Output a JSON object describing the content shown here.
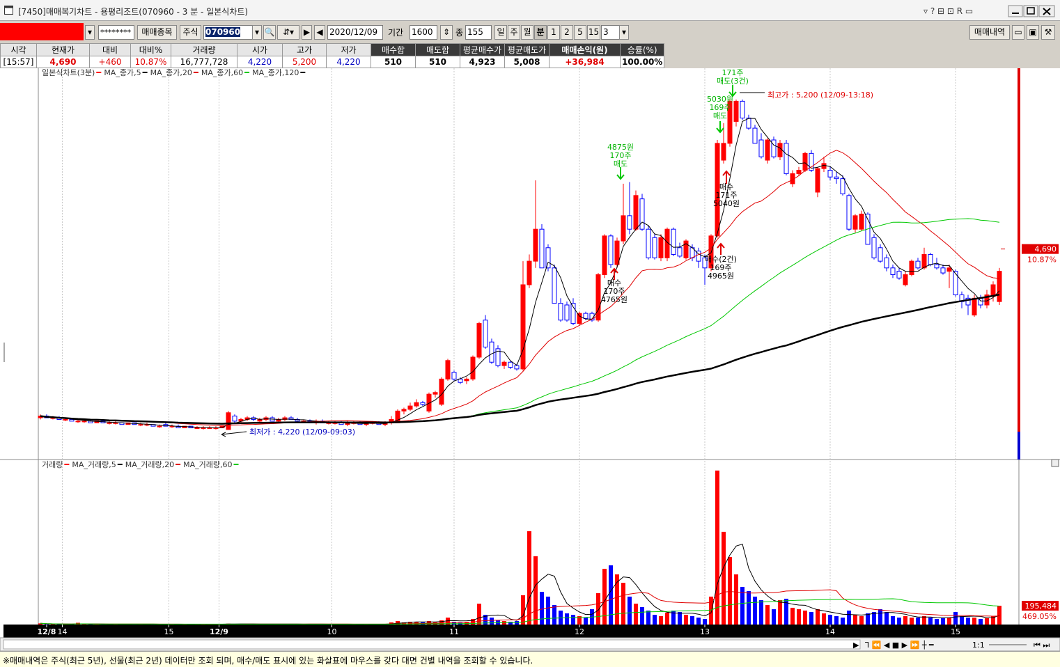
{
  "window": {
    "title": "[7450]매매복기차트 - 용평리조트(070960 - 3 분 - 일본식차트)"
  },
  "toolbar": {
    "password": "********",
    "trade_symbol": "매매종목",
    "market": "주식",
    "code": "070960",
    "date": "2020/12/09",
    "period_label": "기간",
    "period": "1600",
    "count_label": "종",
    "count": "155",
    "units": [
      "일",
      "주",
      "월",
      "분"
    ],
    "minutes": [
      "1",
      "2",
      "5",
      "15"
    ],
    "minute_select": "3",
    "history": "매매내역"
  },
  "summary": {
    "headers": [
      "시각",
      "현재가",
      "대비",
      "대비%",
      "거래량",
      "시가",
      "고가",
      "저가",
      "매수합",
      "매도합",
      "평균매수가",
      "평균매도가",
      "매매손익(원)",
      "승률(%)"
    ],
    "values": [
      "[15:57]",
      "4,690",
      "+460",
      "10.87%",
      "16,777,728",
      "4,220",
      "5,200",
      "4,220",
      "510",
      "510",
      "4,923",
      "5,008",
      "+36,984",
      "100.00%"
    ]
  },
  "chart_data": [
    {
      "type": "candlestick",
      "title": "일본식차트(3분)",
      "up_color": "#ff0000",
      "down_color": "#0000ff",
      "xlim": [
        -0.33,
        156
      ],
      "ylim": [
        4131,
        5293
      ],
      "xticks": [
        {
          "value": 1,
          "label": "12/8"
        },
        {
          "value": 3.5,
          "label": "14"
        },
        {
          "value": 20.5,
          "label": "15"
        },
        {
          "value": 28.5,
          "label": "12/9"
        },
        {
          "value": 46.5,
          "label": "10"
        },
        {
          "value": 66,
          "label": "11"
        },
        {
          "value": 86,
          "label": "12"
        },
        {
          "value": 106,
          "label": "13"
        },
        {
          "value": 126,
          "label": "14"
        },
        {
          "value": 146,
          "label": "15"
        }
      ],
      "moving_averages": [
        {
          "name": "MA_종가,5",
          "period": 5,
          "color": "#000000",
          "width": 1
        },
        {
          "name": "MA_종가,20",
          "period": 20,
          "color": "#e00000",
          "width": 1
        },
        {
          "name": "MA_종가,60",
          "period": 60,
          "color": "#00c800",
          "width": 1
        },
        {
          "name": "MA_종가,120",
          "period": 120,
          "color": "#000000",
          "width": 2.5
        }
      ],
      "ohlc": [
        [
          4255,
          4265,
          4250,
          4260
        ],
        [
          4260,
          4265,
          4255,
          4255
        ],
        [
          4255,
          4260,
          4250,
          4255
        ],
        [
          4255,
          4260,
          4250,
          4250
        ],
        [
          4250,
          4255,
          4245,
          4250
        ],
        [
          4250,
          4255,
          4245,
          4245
        ],
        [
          4245,
          4250,
          4240,
          4245
        ],
        [
          4245,
          4250,
          4240,
          4245
        ],
        [
          4245,
          4250,
          4240,
          4240
        ],
        [
          4240,
          4245,
          4240,
          4245
        ],
        [
          4245,
          4245,
          4240,
          4240
        ],
        [
          4240,
          4245,
          4235,
          4240
        ],
        [
          4240,
          4245,
          4235,
          4240
        ],
        [
          4240,
          4240,
          4235,
          4235
        ],
        [
          4235,
          4240,
          4235,
          4240
        ],
        [
          4240,
          4240,
          4235,
          4235
        ],
        [
          4235,
          4240,
          4230,
          4235
        ],
        [
          4235,
          4240,
          4230,
          4235
        ],
        [
          4235,
          4235,
          4230,
          4230
        ],
        [
          4230,
          4235,
          4225,
          4230
        ],
        [
          4235,
          4240,
          4230,
          4230
        ],
        [
          4230,
          4235,
          4225,
          4230
        ],
        [
          4230,
          4235,
          4225,
          4225
        ],
        [
          4225,
          4230,
          4225,
          4230
        ],
        [
          4230,
          4230,
          4225,
          4225
        ],
        [
          4225,
          4230,
          4225,
          4225
        ],
        [
          4225,
          4230,
          4220,
          4225
        ],
        [
          4225,
          4230,
          4225,
          4225
        ],
        [
          4225,
          4230,
          4220,
          4225
        ],
        [
          4225,
          4230,
          4225,
          4230
        ],
        [
          4220,
          4275,
          4220,
          4270
        ],
        [
          4260,
          4265,
          4240,
          4245
        ],
        [
          4245,
          4255,
          4240,
          4250
        ],
        [
          4250,
          4260,
          4245,
          4255
        ],
        [
          4255,
          4260,
          4245,
          4250
        ],
        [
          4245,
          4255,
          4240,
          4250
        ],
        [
          4250,
          4260,
          4245,
          4255
        ],
        [
          4255,
          4260,
          4245,
          4245
        ],
        [
          4245,
          4255,
          4240,
          4250
        ],
        [
          4250,
          4260,
          4245,
          4255
        ],
        [
          4255,
          4260,
          4250,
          4250
        ],
        [
          4250,
          4255,
          4240,
          4245
        ],
        [
          4245,
          4250,
          4240,
          4245
        ],
        [
          4245,
          4250,
          4240,
          4240
        ],
        [
          4240,
          4250,
          4235,
          4245
        ],
        [
          4245,
          4250,
          4240,
          4240
        ],
        [
          4240,
          4245,
          4235,
          4240
        ],
        [
          4240,
          4245,
          4235,
          4240
        ],
        [
          4240,
          4245,
          4235,
          4235
        ],
        [
          4235,
          4245,
          4230,
          4240
        ],
        [
          4240,
          4245,
          4235,
          4240
        ],
        [
          4240,
          4245,
          4235,
          4235
        ],
        [
          4235,
          4240,
          4230,
          4240
        ],
        [
          4240,
          4245,
          4235,
          4240
        ],
        [
          4240,
          4245,
          4235,
          4235
        ],
        [
          4235,
          4245,
          4230,
          4240
        ],
        [
          4240,
          4260,
          4235,
          4250
        ],
        [
          4240,
          4280,
          4240,
          4275
        ],
        [
          4275,
          4285,
          4265,
          4280
        ],
        [
          4280,
          4300,
          4275,
          4290
        ],
        [
          4290,
          4310,
          4285,
          4300
        ],
        [
          4300,
          4305,
          4290,
          4295
        ],
        [
          4275,
          4330,
          4270,
          4325
        ],
        [
          4325,
          4335,
          4315,
          4330
        ],
        [
          4295,
          4375,
          4290,
          4370
        ],
        [
          4370,
          4430,
          4365,
          4425
        ],
        [
          4390,
          4395,
          4365,
          4370
        ],
        [
          4370,
          4375,
          4355,
          4360
        ],
        [
          4365,
          4375,
          4355,
          4370
        ],
        [
          4370,
          4440,
          4365,
          4435
        ],
        [
          4435,
          4540,
          4430,
          4535
        ],
        [
          4545,
          4560,
          4460,
          4465
        ],
        [
          4480,
          4490,
          4415,
          4420
        ],
        [
          4460,
          4470,
          4405,
          4410
        ],
        [
          4410,
          4425,
          4400,
          4420
        ],
        [
          4420,
          4425,
          4400,
          4405
        ],
        [
          4410,
          4415,
          4395,
          4400
        ],
        [
          4400,
          4720,
          4395,
          4650
        ],
        [
          4650,
          4740,
          4640,
          4720
        ],
        [
          4720,
          4960,
          4700,
          4815
        ],
        [
          4815,
          4830,
          4700,
          4700
        ],
        [
          4760,
          4770,
          4690,
          4700
        ],
        [
          4700,
          4710,
          4595,
          4595
        ],
        [
          4595,
          4610,
          4540,
          4545
        ],
        [
          4590,
          4600,
          4540,
          4545
        ],
        [
          4595,
          4610,
          4530,
          4535
        ],
        [
          4535,
          4570,
          4530,
          4565
        ],
        [
          4565,
          4570,
          4545,
          4550
        ],
        [
          4565,
          4570,
          4540,
          4545
        ],
        [
          4545,
          4685,
          4540,
          4680
        ],
        [
          4680,
          4800,
          4670,
          4795
        ],
        [
          4795,
          4800,
          4700,
          4710
        ],
        [
          4710,
          4790,
          4700,
          4780
        ],
        [
          4780,
          4950,
          4770,
          4855
        ],
        [
          4855,
          4955,
          4800,
          4815
        ],
        [
          4815,
          4930,
          4810,
          4915
        ],
        [
          4905,
          4920,
          4810,
          4815
        ],
        [
          4815,
          4825,
          4725,
          4730
        ],
        [
          4790,
          4800,
          4725,
          4730
        ],
        [
          4730,
          4800,
          4720,
          4790
        ],
        [
          4730,
          4820,
          4720,
          4815
        ],
        [
          4815,
          4820,
          4735,
          4740
        ],
        [
          4760,
          4775,
          4730,
          4735
        ],
        [
          4730,
          4785,
          4725,
          4780
        ],
        [
          4760,
          4770,
          4720,
          4730
        ],
        [
          4750,
          4760,
          4700,
          4720
        ],
        [
          4730,
          4740,
          4650,
          4700
        ],
        [
          4700,
          4800,
          4690,
          4795
        ],
        [
          4795,
          5080,
          4790,
          5070
        ],
        [
          5020,
          5130,
          5010,
          5070
        ],
        [
          5070,
          5200,
          5060,
          5195
        ],
        [
          5135,
          5200,
          5120,
          5195
        ],
        [
          5195,
          5200,
          5140,
          5145
        ],
        [
          5145,
          5155,
          5110,
          5115
        ],
        [
          5115,
          5125,
          5070,
          5070
        ],
        [
          5080,
          5100,
          5025,
          5030
        ],
        [
          5020,
          5085,
          5010,
          5080
        ],
        [
          5080,
          5090,
          5025,
          5030
        ],
        [
          5030,
          5080,
          5020,
          5070
        ],
        [
          5070,
          5080,
          4975,
          4980
        ],
        [
          4950,
          4990,
          4940,
          4980
        ],
        [
          4980,
          5000,
          4975,
          4990
        ],
        [
          4990,
          5045,
          4985,
          5040
        ],
        [
          5040,
          5050,
          4985,
          4990
        ],
        [
          4925,
          5000,
          4910,
          4995
        ],
        [
          4995,
          5030,
          4985,
          5010
        ],
        [
          4990,
          5000,
          4960,
          4970
        ],
        [
          4970,
          4985,
          4950,
          4965
        ],
        [
          4965,
          4975,
          4915,
          4920
        ],
        [
          4915,
          4920,
          4810,
          4815
        ],
        [
          4815,
          4860,
          4805,
          4855
        ],
        [
          4815,
          4870,
          4810,
          4860
        ],
        [
          4860,
          4865,
          4770,
          4770
        ],
        [
          4790,
          4800,
          4725,
          4730
        ],
        [
          4760,
          4770,
          4715,
          4720
        ],
        [
          4730,
          4740,
          4690,
          4700
        ],
        [
          4700,
          4710,
          4670,
          4680
        ],
        [
          4690,
          4700,
          4665,
          4670
        ],
        [
          4650,
          4690,
          4645,
          4680
        ],
        [
          4680,
          4725,
          4675,
          4720
        ],
        [
          4720,
          4730,
          4695,
          4700
        ],
        [
          4700,
          4760,
          4695,
          4740
        ],
        [
          4740,
          4745,
          4705,
          4710
        ],
        [
          4710,
          4730,
          4695,
          4700
        ],
        [
          4700,
          4710,
          4680,
          4685
        ],
        [
          4690,
          4710,
          4640,
          4700
        ],
        [
          4690,
          4695,
          4615,
          4620
        ],
        [
          4620,
          4630,
          4580,
          4600
        ],
        [
          4610,
          4620,
          4560,
          4590
        ],
        [
          4560,
          4620,
          4555,
          4610
        ],
        [
          4610,
          4620,
          4580,
          4590
        ],
        [
          4590,
          4635,
          4580,
          4620
        ],
        [
          4615,
          4660,
          4600,
          4650
        ],
        [
          4600,
          4700,
          4590,
          4690
        ]
      ],
      "last_label": {
        "value": 4690,
        "label": "4,690",
        "change": "10.87%"
      },
      "annotations": [
        {
          "lines": [
            "171주",
            "매도(3건)"
          ],
          "color": "#00b400"
        },
        {
          "lines": [
            "5030원",
            "169주",
            "매도"
          ],
          "color": "#00b400"
        },
        {
          "lines": [
            "4875원",
            "170주",
            "매도"
          ],
          "color": "#00b400"
        },
        {
          "lines": [
            "매수",
            "170주",
            "4765원"
          ],
          "color": "#000000"
        },
        {
          "lines": [
            "매수",
            "171주",
            "5040원"
          ],
          "color": "#000000"
        },
        {
          "lines": [
            "매수(2건)",
            "169주",
            "4965원"
          ],
          "color": "#000000"
        },
        {
          "lines": [
            "최고가 : 5,200 (12/09-13:18)"
          ],
          "color": "#e00000"
        },
        {
          "lines": [
            "최저가 : 4,220 (12/09-09:03)"
          ],
          "color": "#0000c0"
        }
      ]
    },
    {
      "type": "bar",
      "title": "거래량",
      "ylim": [
        0,
        1700000
      ],
      "moving_averages": [
        {
          "name": "MA_거래량,5",
          "period": 5,
          "color": "#000000",
          "width": 1
        },
        {
          "name": "MA_거래량,20",
          "period": 20,
          "color": "#e00000",
          "width": 1
        },
        {
          "name": "MA_거래량,60",
          "period": 60,
          "color": "#00c800",
          "width": 1
        }
      ],
      "values": [
        12000,
        5000,
        4000,
        6000,
        3000,
        4000,
        18000,
        3000,
        4000,
        2000,
        3000,
        5000,
        2000,
        3000,
        4000,
        2000,
        3000,
        5000,
        2000,
        3000,
        4000,
        2000,
        3000,
        2000,
        4000,
        3000,
        2000,
        3000,
        5000,
        6000,
        9000,
        7000,
        5000,
        6000,
        4000,
        5000,
        6000,
        4000,
        5000,
        6000,
        4000,
        5000,
        3000,
        4000,
        5000,
        3000,
        4000,
        3000,
        4000,
        5000,
        3000,
        4000,
        3000,
        4000,
        3000,
        5000,
        22000,
        36000,
        22000,
        29000,
        29000,
        22000,
        36000,
        22000,
        43000,
        72000,
        29000,
        22000,
        29000,
        58000,
        217000,
        101000,
        72000,
        43000,
        36000,
        29000,
        36000,
        304000,
        970000,
        710000,
        340000,
        290000,
        203000,
        145000,
        116000,
        101000,
        87000,
        72000,
        159000,
        326000,
        579000,
        615000,
        521000,
        434000,
        290000,
        217000,
        181000,
        145000,
        101000,
        87000,
        123000,
        145000,
        130000,
        101000,
        87000,
        72000,
        58000,
        290000,
        1600000,
        963000,
        702000,
        521000,
        391000,
        348000,
        290000,
        253000,
        203000,
        159000,
        253000,
        268000,
        174000,
        159000,
        145000,
        130000,
        159000,
        116000,
        101000,
        87000,
        72000,
        145000,
        101000,
        87000,
        116000,
        130000,
        159000,
        130000,
        87000,
        72000,
        87000,
        72000,
        72000,
        87000,
        72000,
        58000,
        65000,
        72000,
        130000,
        87000,
        72000,
        72000,
        58000,
        65000,
        87000,
        195484
      ],
      "last_label": {
        "value": 195484,
        "label": "195,484",
        "ratio": "469.05%"
      }
    }
  ],
  "scroll": {
    "zoom": "1:1"
  },
  "status": {
    "text": "※매매내역은 주식(최근 5년), 선물(최근 2년) 데이터만 조회 되며, 매수/매도 표시에 있는 화살표에 마우스를 갖다 대면 건별 내역을 조회할 수 있습니다."
  }
}
